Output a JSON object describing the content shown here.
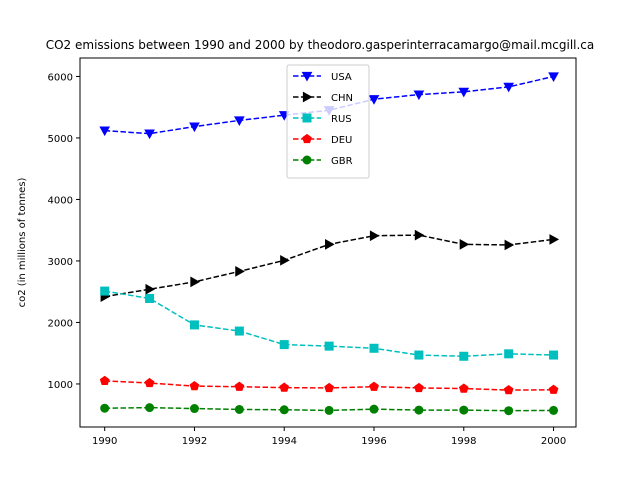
{
  "chart_data": {
    "type": "line",
    "title": "CO2 emissions between 1990 and 2000 by theodoro.gasperinterracamargo@mail.mcgill.ca",
    "xlabel": "",
    "ylabel": "co2 (in millions of tonnes)",
    "xlim": [
      1989.45,
      2000.5
    ],
    "ylim": [
      300,
      6300
    ],
    "xticks": [
      1990,
      1992,
      1994,
      1996,
      1998,
      2000
    ],
    "yticks": [
      1000,
      2000,
      3000,
      4000,
      5000,
      6000
    ],
    "grid": false,
    "legend_placement": "upper center",
    "x": [
      1990,
      1991,
      1992,
      1993,
      1994,
      1995,
      1996,
      1997,
      1998,
      1999,
      2000
    ],
    "series": [
      {
        "name": "USA",
        "color": "#0000ff",
        "marker": "triangle-down",
        "values": [
          5120,
          5070,
          5185,
          5285,
          5370,
          5450,
          5630,
          5705,
          5750,
          5830,
          6000
        ]
      },
      {
        "name": "CHN",
        "color": "#000000",
        "marker": "triangle-right",
        "values": [
          2420,
          2540,
          2660,
          2830,
          3010,
          3270,
          3410,
          3420,
          3270,
          3260,
          3350
        ]
      },
      {
        "name": "RUS",
        "color": "#00bfbf",
        "marker": "square",
        "values": [
          2510,
          2390,
          1960,
          1860,
          1640,
          1615,
          1580,
          1470,
          1450,
          1490,
          1470
        ]
      },
      {
        "name": "DEU",
        "color": "#ff0000",
        "marker": "pentagon",
        "values": [
          1050,
          1015,
          965,
          955,
          940,
          935,
          955,
          935,
          925,
          900,
          905
        ]
      },
      {
        "name": "GBR",
        "color": "#008000",
        "marker": "circle",
        "values": [
          605,
          615,
          600,
          585,
          580,
          570,
          590,
          575,
          575,
          565,
          570
        ]
      }
    ]
  }
}
